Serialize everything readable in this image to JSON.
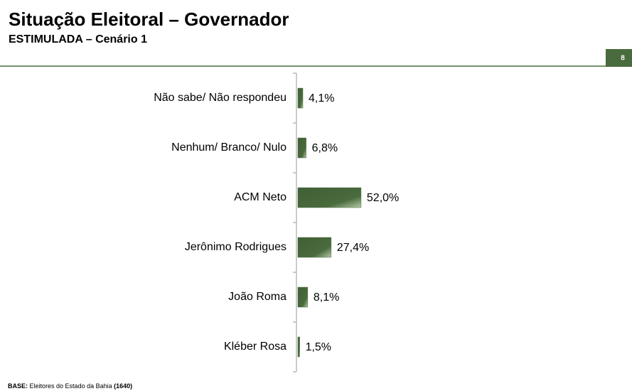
{
  "chart_data": {
    "type": "bar",
    "orientation": "horizontal",
    "title": "Situação Eleitoral – Governador",
    "subtitle": "ESTIMULADA – Cenário 1",
    "categories": [
      "Não sabe/ Não respondeu",
      "Nenhum/ Branco/ Nulo",
      "ACM Neto",
      "Jerônimo Rodrigues",
      "João Roma",
      "Kléber Rosa"
    ],
    "values": [
      4.1,
      6.8,
      52.0,
      27.4,
      8.1,
      1.5
    ],
    "value_labels": [
      "4,1%",
      "6,8%",
      "52,0%",
      "27,4%",
      "8,1%",
      "1,5%"
    ],
    "color": "#4a6b3e"
  },
  "footer": {
    "label": "BASE:",
    "text": "Eleitores do Estado da Bahia",
    "count": "(1640)"
  },
  "page_number": 8
}
